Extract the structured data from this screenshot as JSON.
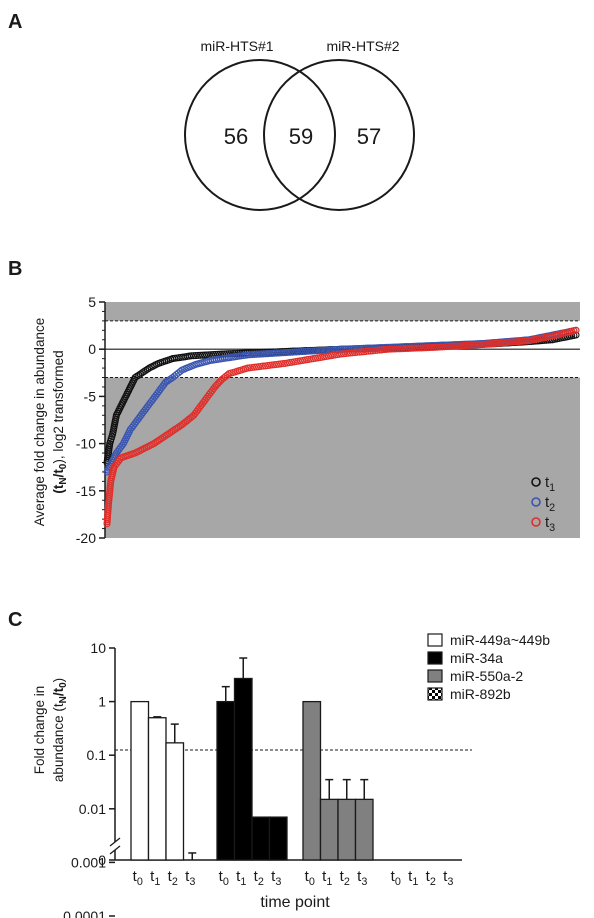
{
  "panels": {
    "a": "A",
    "b": "B",
    "c": "C"
  },
  "chart_data": [
    {
      "type": "venn",
      "set_labels": [
        "miR-HTS#1",
        "miR-HTS#2"
      ],
      "counts": {
        "only_set1": "56",
        "intersection": "59",
        "only_set2": "57"
      }
    },
    {
      "type": "scatter",
      "ylabel_line1": "Average fold change in abundance",
      "ylabel_line2_prefix": "(t",
      "ylabel_line2_sub1": "N",
      "ylabel_line2_mid": "/t",
      "ylabel_line2_sub2": "0",
      "ylabel_line2_suffix": "), log2 transformed",
      "ylim": [
        -20,
        5
      ],
      "y_ticks": [
        "5",
        "0",
        "-5",
        "-10",
        "-15",
        "-20"
      ],
      "grid": false,
      "threshold_lines": [
        3,
        -3
      ],
      "shaded_regions": [
        [
          3,
          5
        ],
        [
          -20,
          -3
        ]
      ],
      "legend_position": "bottom-right",
      "series": [
        {
          "name_base": "t",
          "name_sub": "1",
          "color": "#111111",
          "points": [
            [
              0.0,
              -12
            ],
            [
              0.006,
              -10
            ],
            [
              0.012,
              -9
            ],
            [
              0.02,
              -7
            ],
            [
              0.03,
              -6
            ],
            [
              0.04,
              -5
            ],
            [
              0.05,
              -4
            ],
            [
              0.06,
              -3
            ],
            [
              0.075,
              -2.5
            ],
            [
              0.09,
              -2
            ],
            [
              0.11,
              -1.5
            ],
            [
              0.14,
              -1.0
            ],
            [
              0.18,
              -0.7
            ],
            [
              0.25,
              -0.5
            ],
            [
              0.35,
              -0.3
            ],
            [
              0.5,
              0.0
            ],
            [
              0.65,
              0.2
            ],
            [
              0.8,
              0.5
            ],
            [
              0.9,
              0.8
            ],
            [
              0.95,
              1.0
            ],
            [
              1.0,
              1.5
            ]
          ]
        },
        {
          "name_base": "t",
          "name_sub": "2",
          "color": "#3955b0",
          "points": [
            [
              0.0,
              -13
            ],
            [
              0.01,
              -12
            ],
            [
              0.02,
              -11
            ],
            [
              0.035,
              -10
            ],
            [
              0.05,
              -8.5
            ],
            [
              0.065,
              -7.5
            ],
            [
              0.08,
              -6.5
            ],
            [
              0.095,
              -5.5
            ],
            [
              0.11,
              -4.5
            ],
            [
              0.125,
              -3.5
            ],
            [
              0.14,
              -3.0
            ],
            [
              0.16,
              -2.2
            ],
            [
              0.19,
              -1.6
            ],
            [
              0.22,
              -1.2
            ],
            [
              0.26,
              -0.9
            ],
            [
              0.3,
              -0.6
            ],
            [
              0.4,
              -0.3
            ],
            [
              0.5,
              0.0
            ],
            [
              0.65,
              0.3
            ],
            [
              0.8,
              0.6
            ],
            [
              0.9,
              1.0
            ],
            [
              0.95,
              1.5
            ],
            [
              1.0,
              2.0
            ]
          ]
        },
        {
          "name_base": "t",
          "name_sub": "3",
          "color": "#e02f2a",
          "points": [
            [
              0.0,
              -18.5
            ],
            [
              0.003,
              -16.5
            ],
            [
              0.008,
              -14
            ],
            [
              0.015,
              -12.5
            ],
            [
              0.03,
              -11.5
            ],
            [
              0.06,
              -11
            ],
            [
              0.1,
              -10
            ],
            [
              0.13,
              -9
            ],
            [
              0.16,
              -8
            ],
            [
              0.185,
              -7
            ],
            [
              0.2,
              -6
            ],
            [
              0.215,
              -5
            ],
            [
              0.23,
              -4
            ],
            [
              0.245,
              -3.2
            ],
            [
              0.26,
              -2.6
            ],
            [
              0.3,
              -2.0
            ],
            [
              0.38,
              -1.5
            ],
            [
              0.5,
              -0.5
            ],
            [
              0.6,
              0.0
            ],
            [
              0.7,
              0.2
            ],
            [
              0.8,
              0.5
            ],
            [
              0.9,
              0.9
            ],
            [
              0.95,
              1.4
            ],
            [
              1.0,
              2.0
            ]
          ]
        }
      ]
    },
    {
      "type": "bar",
      "ylabel_line1": "Fold change in",
      "ylabel_line2_prefix": "abundance (t",
      "ylabel_line2_sub1": "N",
      "ylabel_line2_mid": "/t",
      "ylabel_line2_sub2": "0",
      "ylabel_line2_suffix": ")",
      "xlabel": "time point",
      "yscale": "log",
      "y_ticks": [
        "10",
        "1",
        "0.1",
        "0.01",
        "0.001",
        "0.0001",
        "0"
      ],
      "threshold": 0.125,
      "legend_position": "top-right",
      "group_tick_base": "t",
      "group_tick_subs": [
        "0",
        "1",
        "2",
        "3"
      ],
      "groups": [
        {
          "name": "miR-449a~449b",
          "fill": "#ffffff",
          "values": [
            1,
            0.5,
            0.17,
            0.0011
          ],
          "errors": [
            null,
            0.52,
            0.38,
            0.0015
          ]
        },
        {
          "name": "miR-34a",
          "fill": "#000000",
          "values": [
            1,
            2.7,
            0.007,
            0.007
          ],
          "errors": [
            1.9,
            6.5,
            null,
            null
          ]
        },
        {
          "name": "miR-550a-2",
          "fill": "#808080",
          "values": [
            1,
            0.015,
            0.015,
            0.015
          ],
          "errors": [
            null,
            0.035,
            0.035,
            0.035
          ]
        },
        {
          "name": "miR-892b",
          "fill": "checker",
          "values": [
            null,
            null,
            null,
            null
          ],
          "errors": [
            null,
            null,
            null,
            null
          ]
        }
      ]
    }
  ]
}
